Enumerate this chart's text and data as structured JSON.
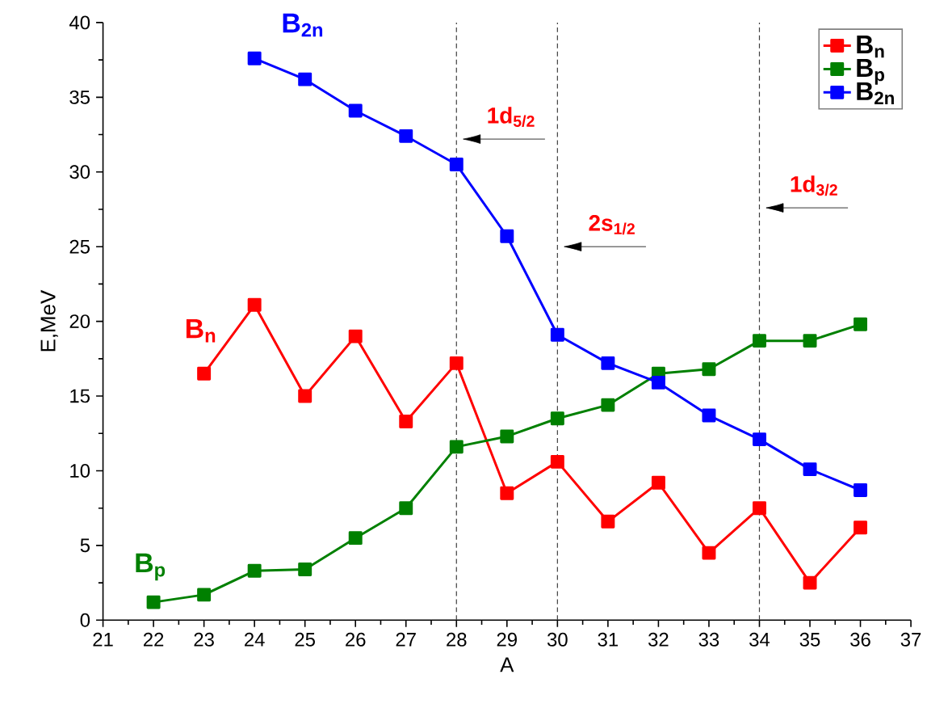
{
  "chart_data": {
    "type": "line",
    "xlabel": "A",
    "ylabel": "E,MeV",
    "x": [
      22,
      23,
      24,
      25,
      26,
      27,
      28,
      29,
      30,
      31,
      32,
      33,
      34,
      35,
      36
    ],
    "series": [
      {
        "name": "B$_{n}$",
        "color": "#ff0000",
        "values": [
          null,
          16.5,
          21.1,
          15.0,
          19.0,
          13.3,
          17.2,
          8.5,
          10.6,
          6.6,
          9.2,
          4.5,
          7.5,
          2.5,
          6.2
        ]
      },
      {
        "name": "B$_{p}$",
        "color": "#008000",
        "values": [
          1.2,
          1.7,
          3.3,
          3.4,
          5.5,
          7.5,
          11.6,
          12.3,
          13.5,
          14.4,
          16.5,
          16.8,
          18.7,
          18.7,
          19.8
        ]
      },
      {
        "name": "B$_{2n}$",
        "color": "#0000ff",
        "values": [
          null,
          null,
          37.6,
          36.2,
          34.1,
          32.4,
          30.5,
          25.7,
          19.1,
          17.2,
          15.9,
          13.7,
          12.1,
          10.1,
          8.7
        ]
      }
    ],
    "xlim": [
      21,
      37
    ],
    "xticks": [
      21,
      22,
      23,
      24,
      25,
      26,
      27,
      28,
      29,
      30,
      31,
      32,
      33,
      34,
      35,
      36,
      37
    ],
    "ylim": [
      0,
      40
    ],
    "yticks": [
      0,
      5,
      10,
      15,
      20,
      25,
      30,
      35,
      40
    ],
    "ref_lines": [
      {
        "axis": "x",
        "value": 28,
        "color": "#404040",
        "line_style": "dashed",
        "label": "1d$_{5/2}$"
      },
      {
        "axis": "x",
        "value": 30,
        "color": "#404040",
        "line_style": "dashed",
        "label": "2s$_{1/2}$"
      },
      {
        "axis": "x",
        "value": 34,
        "color": "#404040",
        "line_style": "dashed",
        "label": "1d$_{3/2}$"
      }
    ],
    "legend": "top right",
    "marker": "square",
    "line_style": "solid",
    "grid": false
  }
}
